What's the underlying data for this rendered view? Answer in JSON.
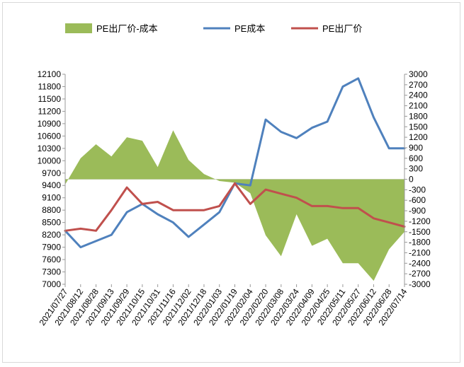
{
  "chart_data": {
    "type": "line",
    "x": [
      "2021/07/27",
      "2021/08/12",
      "2021/08/28",
      "2021/09/13",
      "2021/09/29",
      "2021/10/15",
      "2021/10/31",
      "2021/11/16",
      "2021/12/02",
      "2021/12/18",
      "2022/01/03",
      "2022/01/19",
      "2022/02/04",
      "2022/02/20",
      "2022/03/08",
      "2022/03/24",
      "2022/04/09",
      "2022/04/25",
      "2022/05/11",
      "2022/05/27",
      "2022/06/12",
      "2022/06/28",
      "2022/07/14"
    ],
    "legend_position": "top",
    "y_left": {
      "ticks": [
        "12100",
        "11800",
        "11500",
        "11200",
        "10900",
        "10600",
        "10300",
        "10000",
        "9700",
        "9400",
        "9100",
        "8800",
        "8500",
        "8200",
        "7900",
        "7600",
        "7300",
        "7000"
      ],
      "range": [
        7000,
        12100
      ]
    },
    "y_right": {
      "ticks": [
        "3000",
        "2700",
        "2400",
        "2100",
        "1800",
        "1500",
        "1200",
        "900",
        "600",
        "300",
        "0",
        "-300",
        "-600",
        "-900",
        "-1200",
        "-1500",
        "-1800",
        "-2100",
        "-2400",
        "-2700",
        "-3000"
      ],
      "range": [
        -3000,
        3000
      ]
    },
    "series": [
      {
        "name": "PE出厂价-成本",
        "kind": "area",
        "axis": "right",
        "color": "#9bbb59",
        "values": [
          -150,
          600,
          1000,
          650,
          1200,
          1100,
          350,
          1400,
          550,
          150,
          -50,
          -100,
          -400,
          -1600,
          -2200,
          -1000,
          -1900,
          -1700,
          -2400,
          -2400,
          -2900,
          -2000,
          -1500
        ]
      },
      {
        "name": "PE成本",
        "kind": "line",
        "axis": "left",
        "color": "#4f81bd",
        "values": [
          8300,
          7900,
          8050,
          8200,
          8750,
          8950,
          8700,
          8500,
          8150,
          8450,
          8750,
          9450,
          9400,
          11000,
          10700,
          10550,
          10800,
          10950,
          11800,
          12000,
          11050,
          10300,
          10300
        ]
      },
      {
        "name": "PE出厂价",
        "kind": "line",
        "axis": "left",
        "color": "#c0504d",
        "values": [
          8300,
          8350,
          8300,
          8800,
          9350,
          8950,
          9000,
          8800,
          8800,
          8800,
          8900,
          9450,
          8950,
          9300,
          9200,
          9100,
          8900,
          8900,
          8850,
          8850,
          8600,
          8500,
          8400
        ]
      }
    ]
  }
}
